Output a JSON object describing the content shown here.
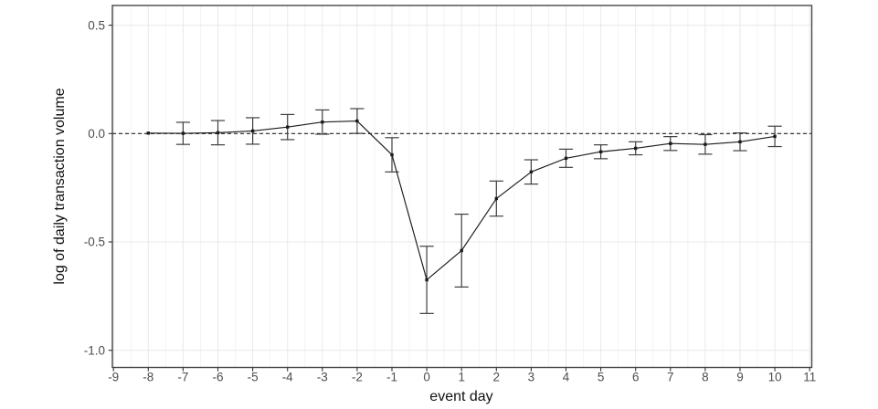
{
  "chart_data": {
    "type": "line",
    "title": "",
    "xlabel": "event day",
    "ylabel": "log of daily transaction volume",
    "legend_position": "none",
    "marker": "square",
    "error_bars": true,
    "reference_line": {
      "y": 0,
      "style": "dashed"
    },
    "x": [
      -8,
      -7,
      -6,
      -5,
      -4,
      -3,
      -2,
      -1,
      0,
      1,
      2,
      3,
      4,
      5,
      6,
      7,
      8,
      9,
      10
    ],
    "y": [
      0.002,
      0.001,
      0.004,
      0.012,
      0.03,
      0.053,
      0.058,
      -0.098,
      -0.675,
      -0.54,
      -0.3,
      -0.177,
      -0.114,
      -0.084,
      -0.068,
      -0.046,
      -0.05,
      -0.038,
      -0.013
    ],
    "yerr": [
      0,
      0.051,
      0.056,
      0.061,
      0.058,
      0.056,
      0.057,
      0.079,
      0.155,
      0.168,
      0.081,
      0.056,
      0.042,
      0.032,
      0.03,
      0.032,
      0.045,
      0.041,
      0.047
    ],
    "x_ticks": [
      -9,
      -8,
      -7,
      -6,
      -5,
      -4,
      -3,
      -2,
      -1,
      0,
      1,
      2,
      3,
      4,
      5,
      6,
      7,
      8,
      9,
      10,
      11
    ],
    "y_tick_labels": [
      "0.5",
      "0.0",
      "-0.5",
      "-1.0"
    ],
    "y_tick_values": [
      0.5,
      0.0,
      -0.5,
      -1.0
    ],
    "xlim": [
      -9,
      11
    ],
    "ylim": [
      -1.08,
      0.59
    ],
    "grid": {
      "major": true,
      "minor_x": true,
      "minor_y": false
    },
    "colors": {
      "line": "#1a1a1a",
      "point": "#1a1a1a",
      "error_bar": "#3f3f3f",
      "reference_line": "#222222",
      "grid_major": "#e9e9e9",
      "grid_minor": "#f4f4f4",
      "panel_border": "#474747",
      "tick_mark": "#333333",
      "tick_label": "#4d4d4d",
      "axis_title": "#111111",
      "background": "#ffffff"
    }
  }
}
